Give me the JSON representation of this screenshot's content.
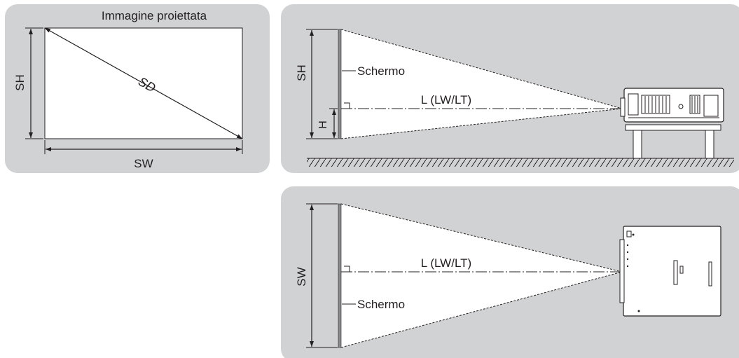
{
  "projected_image": {
    "title": "Immagine proiettata",
    "height_label": "SH",
    "diagonal_label": "SD",
    "width_label": "SW"
  },
  "side_view": {
    "screen_height_label": "SH",
    "offset_label": "H",
    "screen_label": "Schermo",
    "distance_label": "L (LW/LT)"
  },
  "top_view": {
    "screen_width_label": "SW",
    "screen_label": "Schermo",
    "distance_label": "L (LW/LT)"
  },
  "colors": {
    "panel_bg": "#d0d2d3",
    "screen_area": "#ffffff",
    "line": "#231f20",
    "screen_edge": "#8a8c8e"
  }
}
